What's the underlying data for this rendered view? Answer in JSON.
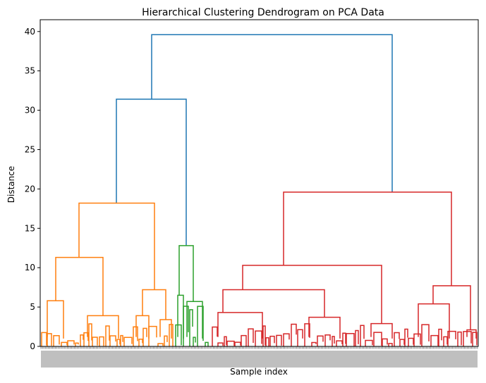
{
  "chart_data": {
    "type": "dendrogram",
    "title": "Hierarchical Clustering Dendrogram on PCA Data",
    "xlabel": "Sample index",
    "ylabel": "Distance",
    "ylim": [
      0,
      41.5
    ],
    "yticks": [
      0,
      5,
      10,
      15,
      20,
      25,
      30,
      35,
      40
    ],
    "grid": false,
    "colors": {
      "cluster_1": "#ff7f0e",
      "cluster_2": "#2ca02c",
      "cluster_3": "#d62728",
      "above_threshold": "#1f77b4"
    },
    "merges": [
      {
        "name": "root",
        "height": 39.6,
        "color": "above_threshold"
      },
      {
        "name": "left-branch",
        "height": 31.4,
        "color": "above_threshold"
      },
      {
        "name": "cluster-1-top",
        "height": 18.2,
        "color": "cluster_1"
      },
      {
        "name": "cluster-1-a",
        "height": 11.3,
        "color": "cluster_1"
      },
      {
        "name": "cluster-1-a-left",
        "height": 5.8,
        "color": "cluster_1"
      },
      {
        "name": "cluster-1-a-right",
        "height": 3.9,
        "color": "cluster_1"
      },
      {
        "name": "cluster-1-b",
        "height": 7.2,
        "color": "cluster_1"
      },
      {
        "name": "cluster-1-b-left",
        "height": 3.9,
        "color": "cluster_1"
      },
      {
        "name": "cluster-1-b-right",
        "height": 3.4,
        "color": "cluster_1"
      },
      {
        "name": "cluster-2-top",
        "height": 12.8,
        "color": "cluster_2"
      },
      {
        "name": "cluster-2-a",
        "height": 6.5,
        "color": "cluster_2"
      },
      {
        "name": "cluster-2-b",
        "height": 5.7,
        "color": "cluster_2"
      },
      {
        "name": "cluster-3-top",
        "height": 19.6,
        "color": "cluster_3"
      },
      {
        "name": "cluster-3-a",
        "height": 10.3,
        "color": "cluster_3"
      },
      {
        "name": "cluster-3-a-left",
        "height": 7.2,
        "color": "cluster_3"
      },
      {
        "name": "cluster-3-a-left-l",
        "height": 4.3,
        "color": "cluster_3"
      },
      {
        "name": "cluster-3-a-left-r",
        "height": 3.7,
        "color": "cluster_3"
      },
      {
        "name": "cluster-3-a-right",
        "height": 2.9,
        "color": "cluster_3"
      },
      {
        "name": "cluster-3-b",
        "height": 7.7,
        "color": "cluster_3"
      },
      {
        "name": "cluster-3-b-left",
        "height": 5.4,
        "color": "cluster_3"
      },
      {
        "name": "cluster-3-b-right",
        "height": 2.1,
        "color": "cluster_3"
      }
    ]
  }
}
